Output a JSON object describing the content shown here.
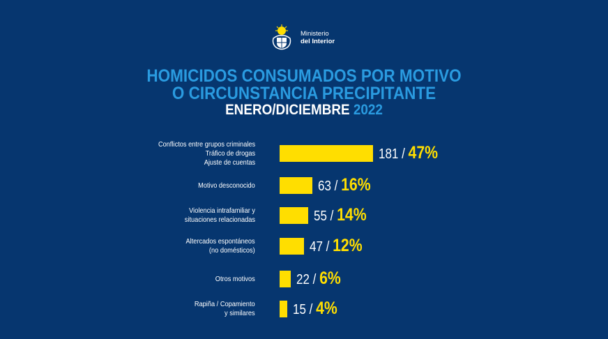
{
  "header": {
    "ministry_line1": "Ministerio",
    "ministry_line2": "del Interior"
  },
  "colors": {
    "background": "#06366f",
    "title_blue": "#2a9be0",
    "bar_yellow": "#ffde00",
    "text_white": "#ffffff"
  },
  "chart_data": {
    "type": "bar",
    "orientation": "horizontal",
    "title_line1": "HOMICIDOS CONSUMADOS POR MOTIVO",
    "title_line2": "O CIRCUNSTANCIA PRECIPITANTE",
    "subtitle_period": "ENERO/DICIEMBRE",
    "subtitle_year": "2022",
    "xlabel": "",
    "ylabel": "",
    "xlim": [
      0,
      181
    ],
    "grid": false,
    "categories": [
      [
        "Conflictos entre grupos criminales",
        "Tráfico de drogas",
        "Ajuste de cuentas"
      ],
      [
        "Motivo desconocido"
      ],
      [
        "Violencia intrafamiliar y",
        "situaciones relacionadas"
      ],
      [
        "Altercados espontáneos",
        "(no domésticos)"
      ],
      [
        "Otros motivos"
      ],
      [
        "Rapiña / Copamiento",
        "y similares"
      ]
    ],
    "values": [
      181,
      63,
      55,
      47,
      22,
      15
    ],
    "percentages": [
      "47%",
      "16%",
      "14%",
      "12%",
      "6%",
      "4%"
    ],
    "value_labels": [
      "181 /",
      "63 /",
      "55 /",
      "47 /",
      "22 /",
      "15 /"
    ]
  }
}
